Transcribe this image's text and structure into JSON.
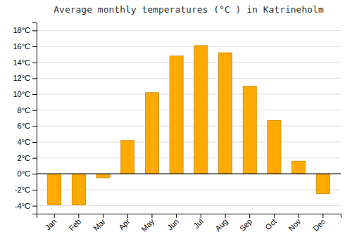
{
  "chart_data": {
    "type": "bar",
    "title": "Average monthly temperatures (°C ) in Katrineholm",
    "categories": [
      "Jan",
      "Feb",
      "Mar",
      "Apr",
      "May",
      "Jun",
      "Jul",
      "Aug",
      "Sep",
      "Oct",
      "Nov",
      "Dec"
    ],
    "values": [
      -3.9,
      -3.9,
      -0.5,
      4.2,
      10.2,
      14.8,
      16.1,
      15.2,
      11.0,
      6.7,
      1.6,
      -2.5
    ],
    "color": "#FFAA00",
    "ylim": [
      -5,
      19
    ],
    "yticks": [
      {
        "value": -4,
        "label": "-4°C"
      },
      {
        "value": -2,
        "label": "-2°C"
      },
      {
        "value": 0,
        "label": "0°C"
      },
      {
        "value": 2,
        "label": "2°C"
      },
      {
        "value": 4,
        "label": "4°C"
      },
      {
        "value": 6,
        "label": "6°C"
      },
      {
        "value": 8,
        "label": "8°C"
      },
      {
        "value": 10,
        "label": "10°C"
      },
      {
        "value": 12,
        "label": "12°C"
      },
      {
        "value": 14,
        "label": "14°C"
      },
      {
        "value": 16,
        "label": "16°C"
      },
      {
        "value": 18,
        "label": "18°C"
      }
    ],
    "grid": true
  }
}
